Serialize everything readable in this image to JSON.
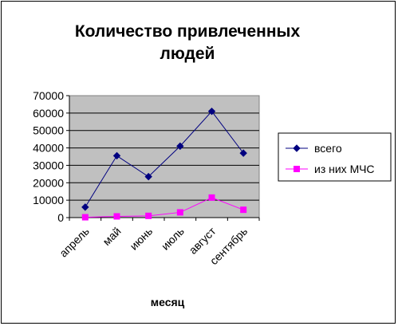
{
  "chart_data": {
    "type": "line",
    "title_lines": [
      "Количество привлеченных",
      "людей"
    ],
    "xlabel": "месяц",
    "ylabel": "",
    "categories": [
      "апрель",
      "май",
      "июнь",
      "июль",
      "август",
      "сентябрь"
    ],
    "ylim": [
      0,
      70000
    ],
    "yticks": [
      "0",
      "10000",
      "20000",
      "30000",
      "40000",
      "50000",
      "60000",
      "70000"
    ],
    "grid": true,
    "legend_position": "right",
    "plot_background": "#c0c0c0",
    "series": [
      {
        "name": "всего",
        "color": "#000080",
        "marker": "diamond",
        "values": [
          6000,
          35500,
          23500,
          41000,
          61000,
          37000
        ]
      },
      {
        "name": "из них МЧС",
        "color": "#ff00ff",
        "marker": "square",
        "values": [
          200,
          700,
          1000,
          3000,
          11500,
          4500
        ]
      }
    ]
  }
}
